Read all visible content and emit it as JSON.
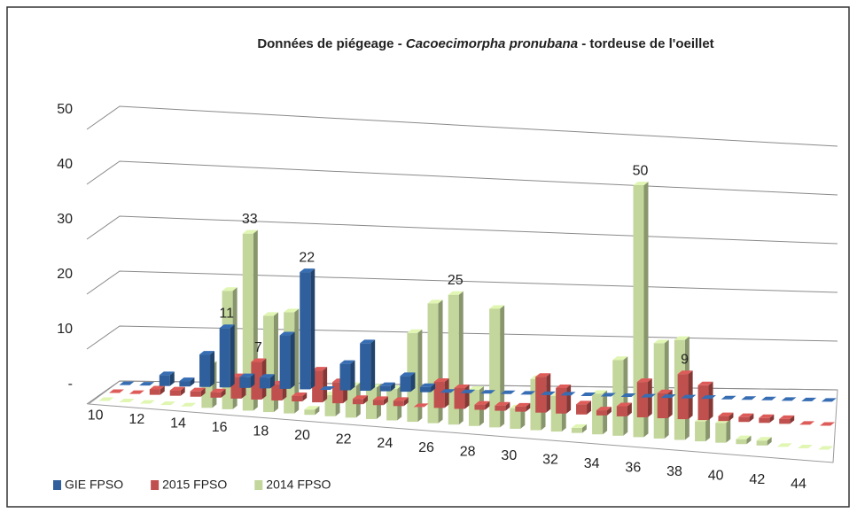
{
  "chart_data": {
    "type": "bar3d",
    "title": [
      "Données de piégeage - ",
      "Cacoecimorpha  pronubana",
      " - tordeuse de l'oeillet"
    ],
    "categories": [
      "10",
      null,
      "12",
      null,
      "14",
      null,
      "16",
      null,
      "18",
      null,
      "20",
      null,
      "22",
      null,
      "24",
      null,
      "26",
      null,
      "28",
      null,
      "30",
      null,
      "32",
      null,
      "34",
      null,
      "36",
      null,
      "38",
      null,
      "40",
      null,
      "42",
      null,
      "44",
      null
    ],
    "series": [
      {
        "name": "GIE FPSO",
        "color": "#2f5f9c",
        "values": [
          0,
          0,
          2,
          1,
          6,
          11,
          2,
          2,
          10,
          22,
          0,
          5,
          9,
          1,
          3,
          1,
          0,
          0,
          0,
          0,
          0,
          0,
          0,
          0,
          0,
          0,
          0,
          0,
          0,
          0,
          0,
          0,
          0,
          0,
          0,
          0
        ],
        "value_labels": [
          null,
          null,
          null,
          null,
          null,
          "11",
          null,
          null,
          null,
          "22",
          null,
          null,
          null,
          null,
          null,
          null,
          null,
          null,
          null,
          null,
          null,
          null,
          null,
          null,
          null,
          null,
          null,
          null,
          null,
          null,
          null,
          null,
          null,
          null,
          null,
          null
        ]
      },
      {
        "name": "2015 FPSO",
        "color": "#c0504d",
        "values": [
          0,
          0,
          1,
          1,
          1,
          1,
          4,
          7,
          3,
          1,
          6,
          4,
          1,
          1,
          1,
          0,
          5,
          4,
          1,
          1,
          1,
          7,
          5,
          2,
          1,
          2,
          7,
          5,
          9,
          7,
          1,
          1,
          1,
          1,
          0,
          0
        ],
        "value_labels": [
          null,
          null,
          null,
          null,
          null,
          null,
          null,
          "7",
          null,
          null,
          null,
          null,
          null,
          null,
          null,
          null,
          null,
          null,
          null,
          null,
          null,
          null,
          null,
          null,
          null,
          null,
          null,
          null,
          "9",
          null,
          null,
          null,
          null,
          null,
          null,
          null
        ]
      },
      {
        "name": "2014 FPSO",
        "color": "#c3d69b",
        "values": [
          0,
          0,
          0,
          0,
          0,
          8,
          22,
          33,
          18,
          19,
          1,
          4,
          6,
          6,
          6,
          17,
          23,
          25,
          7,
          23,
          4,
          10,
          7,
          1,
          8,
          15,
          50,
          19,
          20,
          4,
          4,
          1,
          1,
          0,
          0,
          0
        ],
        "value_labels": [
          null,
          null,
          null,
          null,
          null,
          null,
          null,
          "33",
          null,
          null,
          null,
          null,
          null,
          null,
          null,
          null,
          null,
          "25",
          null,
          null,
          null,
          null,
          null,
          null,
          null,
          null,
          "50",
          null,
          null,
          null,
          null,
          null,
          null,
          null,
          null,
          null
        ]
      }
    ],
    "ylim": [
      0,
      50
    ],
    "yticks": [
      {
        "value": 0,
        "label": "-"
      },
      10,
      20,
      30,
      40,
      50
    ],
    "grid": true,
    "legend": "bottom-left"
  }
}
